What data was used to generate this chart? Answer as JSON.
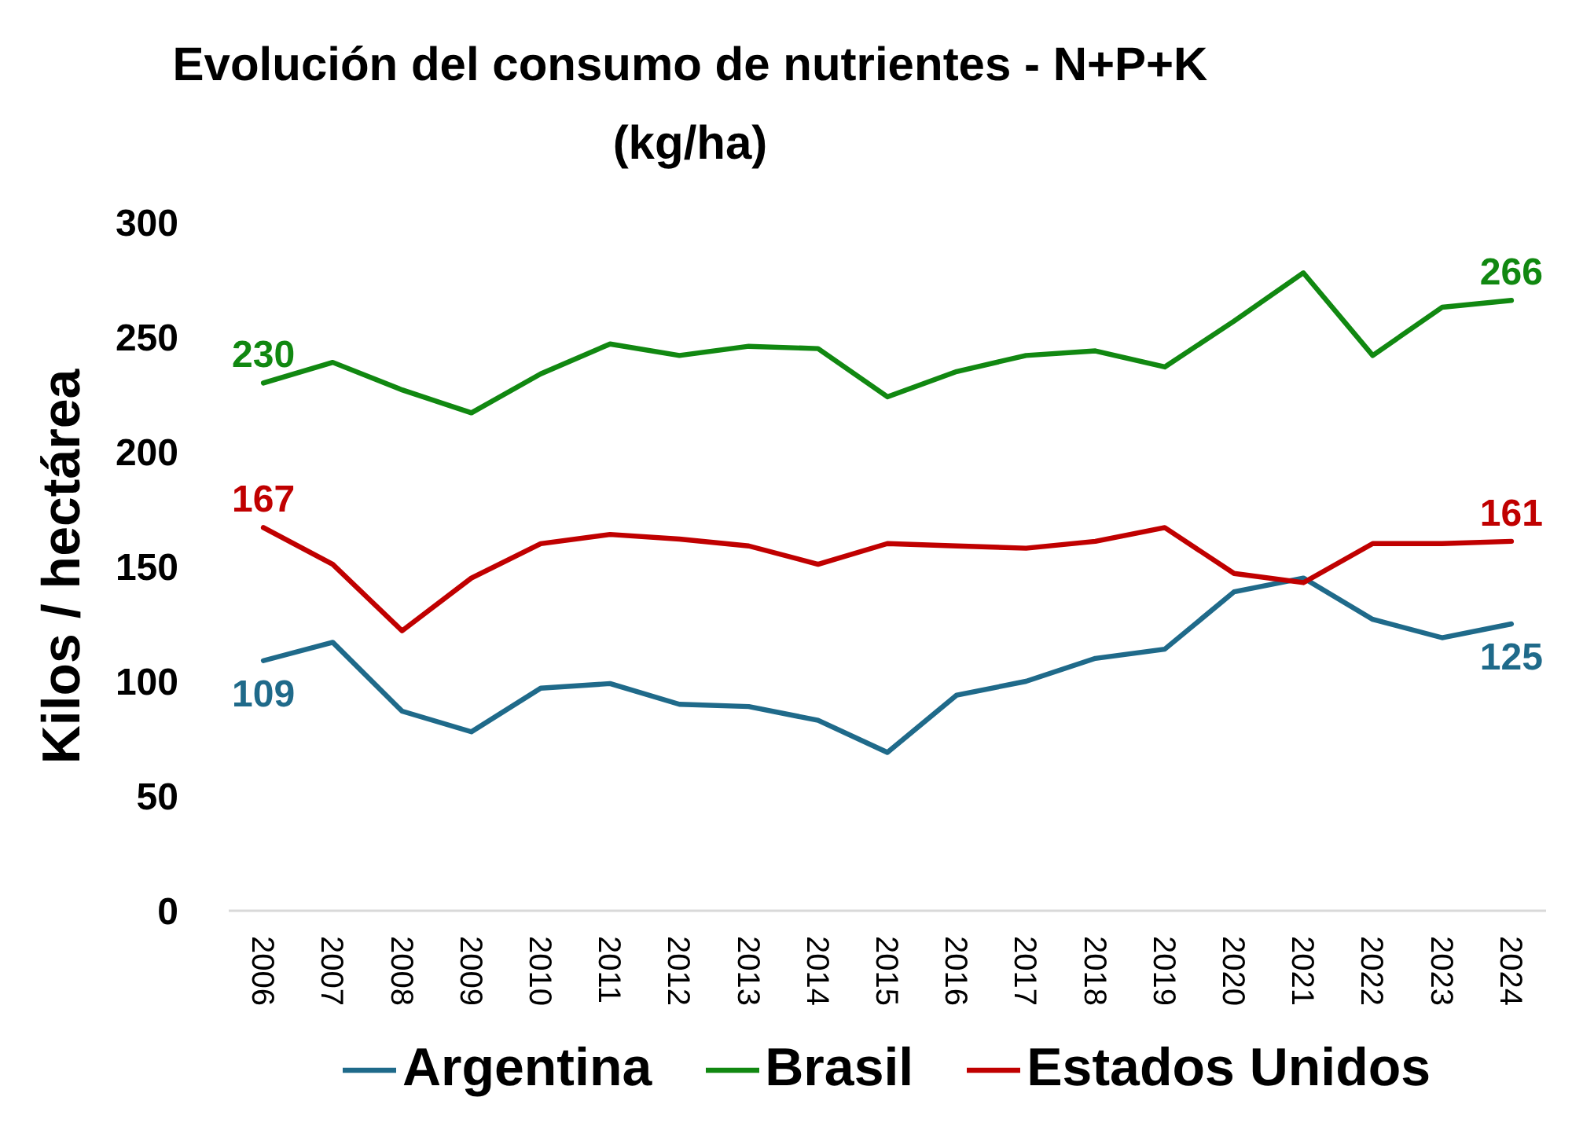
{
  "chart_data": {
    "type": "line",
    "title": "Evolución del consumo de nutrientes - N+P+K\n(kg/ha)",
    "ylabel": "Kilos / hectárea",
    "categories": [
      "2006",
      "2007",
      "2008",
      "2009",
      "2010",
      "2011",
      "2012",
      "2013",
      "2014",
      "2015",
      "2016",
      "2017",
      "2018",
      "2019",
      "2020",
      "2021",
      "2022",
      "2023",
      "2024"
    ],
    "series": [
      {
        "name": "Argentina",
        "color": "#1f6a8a",
        "values": [
          109,
          117,
          87,
          78,
          97,
          99,
          90,
          89,
          83,
          69,
          94,
          100,
          110,
          114,
          139,
          145,
          127,
          119,
          125
        ],
        "value_labels": [
          "109",
          null,
          null,
          null,
          null,
          null,
          null,
          null,
          null,
          null,
          null,
          null,
          null,
          null,
          null,
          null,
          null,
          null,
          "125"
        ]
      },
      {
        "name": "Brasil",
        "color": "#118811",
        "values": [
          230,
          239,
          227,
          217,
          234,
          247,
          242,
          246,
          245,
          224,
          235,
          242,
          244,
          237,
          257,
          278,
          242,
          263,
          266
        ],
        "value_labels": [
          "230",
          null,
          null,
          null,
          null,
          null,
          null,
          null,
          null,
          null,
          null,
          null,
          null,
          null,
          null,
          null,
          null,
          null,
          "266"
        ]
      },
      {
        "name": "Estados Unidos",
        "color": "#c00000",
        "values": [
          167,
          151,
          122,
          145,
          160,
          164,
          162,
          159,
          151,
          160,
          159,
          158,
          161,
          167,
          147,
          143,
          160,
          160,
          161
        ],
        "value_labels": [
          "167",
          null,
          null,
          null,
          null,
          null,
          null,
          null,
          null,
          null,
          null,
          null,
          null,
          null,
          null,
          null,
          null,
          null,
          "161"
        ]
      }
    ],
    "ylim": [
      0,
      300
    ],
    "yticks": [
      0,
      50,
      100,
      150,
      200,
      250,
      300
    ],
    "legend": "bottom"
  }
}
